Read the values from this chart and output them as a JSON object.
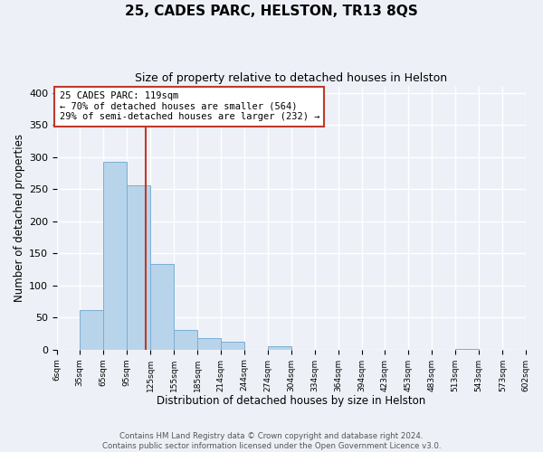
{
  "title": "25, CADES PARC, HELSTON, TR13 8QS",
  "subtitle": "Size of property relative to detached houses in Helston",
  "xlabel": "Distribution of detached houses by size in Helston",
  "ylabel": "Number of detached properties",
  "bin_edges": [
    6,
    35,
    65,
    95,
    125,
    155,
    185,
    214,
    244,
    274,
    304,
    334,
    364,
    394,
    423,
    453,
    483,
    513,
    543,
    573,
    602
  ],
  "bin_labels": [
    "6sqm",
    "35sqm",
    "65sqm",
    "95sqm",
    "125sqm",
    "155sqm",
    "185sqm",
    "214sqm",
    "244sqm",
    "274sqm",
    "304sqm",
    "334sqm",
    "364sqm",
    "394sqm",
    "423sqm",
    "453sqm",
    "483sqm",
    "513sqm",
    "543sqm",
    "573sqm",
    "602sqm"
  ],
  "bar_heights": [
    0,
    62,
    293,
    256,
    133,
    30,
    18,
    12,
    0,
    5,
    0,
    0,
    0,
    0,
    0,
    0,
    0,
    1,
    0,
    0
  ],
  "bar_color": "#b8d4ea",
  "bar_edge_color": "#7aaed4",
  "property_size": 119,
  "vline_color": "#c0392b",
  "annotation_line1": "25 CADES PARC: 119sqm",
  "annotation_line2": "← 70% of detached houses are smaller (564)",
  "annotation_line3": "29% of semi-detached houses are larger (232) →",
  "annotation_box_facecolor": "#ffffff",
  "annotation_box_edgecolor": "#c0392b",
  "ylim": [
    0,
    410
  ],
  "yticks": [
    0,
    50,
    100,
    150,
    200,
    250,
    300,
    350,
    400
  ],
  "footer_text": "Contains HM Land Registry data © Crown copyright and database right 2024.\nContains public sector information licensed under the Open Government Licence v3.0.",
  "background_color": "#edf1f7",
  "grid_color": "#ffffff"
}
